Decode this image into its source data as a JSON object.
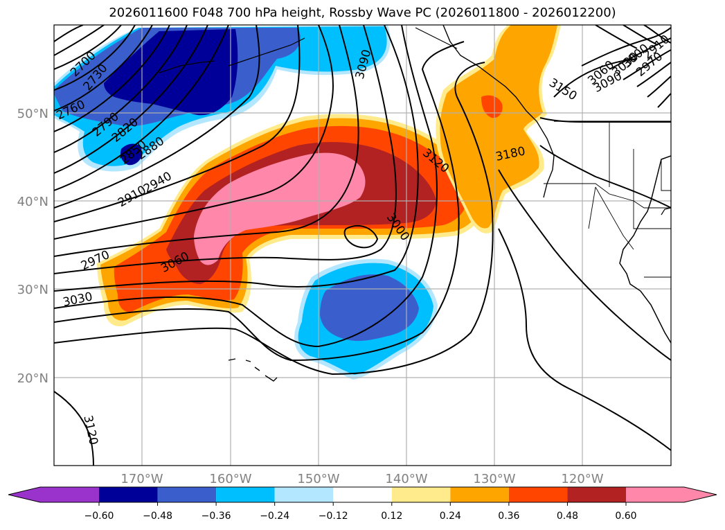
{
  "title": "2026011600 F048 700 hPa height, Rossby Wave PC (2026011800 - 2026012200)",
  "lat_labels": [
    "50°N",
    "40°N",
    "30°N",
    "20°N"
  ],
  "lon_labels": [
    "170°W",
    "160°W",
    "150°W",
    "140°W",
    "130°W",
    "120°W"
  ],
  "colorbar": {
    "colors": [
      "#9933cc",
      "#000099",
      "#3a5fcd",
      "#00bfff",
      "#b3e6ff",
      "#ffffff",
      "#ffeb8c",
      "#ffa500",
      "#ff4500",
      "#b22222",
      "#ff88aa"
    ],
    "tick_labels": [
      "−0.60",
      "−0.48",
      "−0.36",
      "−0.24",
      "−0.12",
      "0.12",
      "0.24",
      "0.36",
      "0.48",
      "0.60"
    ]
  },
  "contour_labels": [
    "2700",
    "2730",
    "2760",
    "2790",
    "2820",
    "2850",
    "2880",
    "2910",
    "2940",
    "2970",
    "3030",
    "3060",
    "3000",
    "3090",
    "3120",
    "3150",
    "3180",
    "3090",
    "3060",
    "3030",
    "3000",
    "2970",
    "2910",
    "3120"
  ]
}
